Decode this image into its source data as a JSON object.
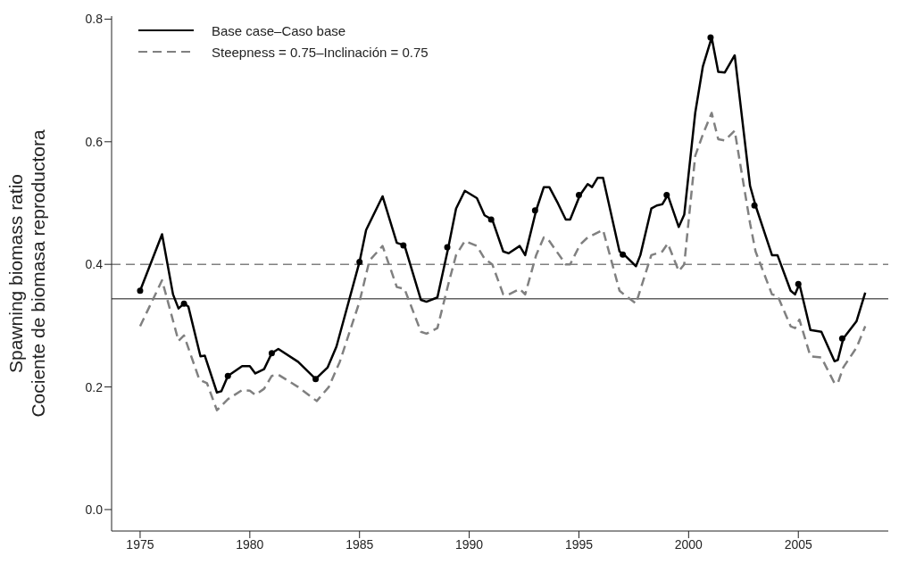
{
  "chart_data": {
    "type": "line",
    "ylabel": "Spawning biomass ratio\nCociente de biomasa reproductora",
    "xlim": [
      1973.7,
      2009.1
    ],
    "xticks": [
      1975,
      1980,
      1985,
      1990,
      1995,
      2000,
      2005
    ],
    "ylim": [
      -0.035,
      0.805
    ],
    "yticks": [
      {
        "value": 0,
        "label": "0.0"
      },
      {
        "value": 0.2,
        "label": "0.2"
      },
      {
        "value": 0.4,
        "label": "0.4"
      },
      {
        "value": 0.6,
        "label": "0.6"
      },
      {
        "value": 0.8,
        "label": "0.8"
      }
    ],
    "legend": "top left",
    "grid": false,
    "series": [
      {
        "name": "Base case–Caso base",
        "color": "#000000",
        "line_style": "solid",
        "x": [
          1975.0,
          1976.0,
          1976.5,
          1976.75,
          1977.0,
          1977.2,
          1977.75,
          1977.95,
          1978.5,
          1978.7,
          1979.0,
          1979.65,
          1980.0,
          1980.25,
          1980.65,
          1981.0,
          1981.3,
          1982.2,
          1983.0,
          1983.55,
          1983.95,
          1985.0,
          1985.3,
          1986.05,
          1986.7,
          1987.05,
          1987.8,
          1988.05,
          1988.55,
          1989.05,
          1989.4,
          1989.8,
          1990.35,
          1990.7,
          1991.05,
          1991.55,
          1991.8,
          1992.3,
          1992.55,
          1993.05,
          1993.4,
          1993.65,
          1994.05,
          1994.4,
          1994.6,
          1995.05,
          1995.4,
          1995.6,
          1995.85,
          1996.1,
          1996.85,
          1997.05,
          1997.6,
          1997.8,
          1998.3,
          1998.55,
          1998.8,
          1999.05,
          1999.55,
          1999.8,
          2000.3,
          2000.65,
          2001.05,
          2001.35,
          2001.65,
          2002.1,
          2002.8,
          2003.05,
          2003.8,
          2004.05,
          2004.65,
          2004.85,
          2005.05,
          2005.55,
          2006.05,
          2006.65,
          2006.8,
          2007.05,
          2007.65,
          2008.05
        ],
        "values": [
          0.357,
          0.449,
          0.351,
          0.328,
          0.336,
          0.331,
          0.25,
          0.251,
          0.191,
          0.193,
          0.218,
          0.234,
          0.234,
          0.222,
          0.229,
          0.255,
          0.262,
          0.241,
          0.213,
          0.232,
          0.266,
          0.404,
          0.456,
          0.511,
          0.435,
          0.431,
          0.342,
          0.339,
          0.346,
          0.428,
          0.491,
          0.52,
          0.508,
          0.48,
          0.473,
          0.421,
          0.418,
          0.43,
          0.415,
          0.488,
          0.526,
          0.526,
          0.499,
          0.473,
          0.473,
          0.513,
          0.531,
          0.526,
          0.541,
          0.541,
          0.421,
          0.416,
          0.397,
          0.415,
          0.491,
          0.496,
          0.498,
          0.513,
          0.461,
          0.481,
          0.647,
          0.723,
          0.77,
          0.714,
          0.713,
          0.741,
          0.528,
          0.496,
          0.415,
          0.415,
          0.357,
          0.351,
          0.368,
          0.293,
          0.29,
          0.242,
          0.244,
          0.279,
          0.307,
          0.354
        ]
      },
      {
        "name": "Steepness = 0.75–Inclinación = 0.75",
        "color": "#808080",
        "line_style": "dashed",
        "x": [
          1975.0,
          1976.0,
          1976.35,
          1976.75,
          1977.0,
          1977.7,
          1978.05,
          1978.5,
          1979.0,
          1979.65,
          1980.0,
          1980.25,
          1980.65,
          1981.0,
          1981.3,
          1982.2,
          1983.05,
          1983.6,
          1984.1,
          1985.0,
          1985.45,
          1986.05,
          1986.7,
          1987.05,
          1987.8,
          1988.05,
          1988.55,
          1989.05,
          1989.4,
          1989.8,
          1990.35,
          1990.7,
          1991.05,
          1991.55,
          1991.8,
          1992.3,
          1992.55,
          1993.05,
          1993.4,
          1993.65,
          1994.4,
          1994.6,
          1995.05,
          1995.4,
          1996.1,
          1996.85,
          1997.05,
          1997.6,
          1998.3,
          1998.8,
          1999.05,
          1999.55,
          1999.8,
          2000.3,
          2000.65,
          2001.05,
          2001.35,
          2001.65,
          2002.1,
          2002.8,
          2003.05,
          2003.8,
          2004.05,
          2004.65,
          2004.85,
          2005.05,
          2005.55,
          2006.05,
          2006.65,
          2006.8,
          2007.05,
          2007.65,
          2008.05
        ],
        "values": [
          0.299,
          0.374,
          0.328,
          0.275,
          0.284,
          0.212,
          0.206,
          0.162,
          0.18,
          0.195,
          0.194,
          0.187,
          0.197,
          0.218,
          0.22,
          0.2,
          0.177,
          0.2,
          0.241,
          0.339,
          0.406,
          0.43,
          0.363,
          0.36,
          0.29,
          0.287,
          0.296,
          0.368,
          0.415,
          0.438,
          0.43,
          0.409,
          0.4,
          0.351,
          0.351,
          0.36,
          0.351,
          0.415,
          0.444,
          0.438,
          0.4,
          0.4,
          0.432,
          0.444,
          0.456,
          0.357,
          0.351,
          0.336,
          0.415,
          0.421,
          0.434,
          0.389,
          0.4,
          0.577,
          0.612,
          0.647,
          0.604,
          0.602,
          0.618,
          0.467,
          0.421,
          0.351,
          0.349,
          0.299,
          0.296,
          0.31,
          0.25,
          0.248,
          0.206,
          0.206,
          0.232,
          0.264,
          0.299
        ]
      },
      {
        "type": "scatter",
        "color": "#000000",
        "marker": "circle",
        "x": [
          1975,
          1977,
          1979,
          1981,
          1983,
          1985,
          1987,
          1989,
          1991,
          1993,
          1995,
          1997,
          1999,
          2001,
          2003,
          2005,
          2007
        ],
        "values": [
          0.357,
          0.336,
          0.218,
          0.255,
          0.213,
          0.404,
          0.431,
          0.428,
          0.473,
          0.488,
          0.513,
          0.416,
          0.513,
          0.77,
          0.496,
          0.368,
          0.279
        ]
      }
    ],
    "ref_lines": [
      {
        "axis": "y",
        "value": 0.4,
        "color": "#808080",
        "line_style": "dashed"
      },
      {
        "axis": "y",
        "value": 0.344,
        "color": "#606060",
        "line_style": "solid"
      }
    ]
  }
}
